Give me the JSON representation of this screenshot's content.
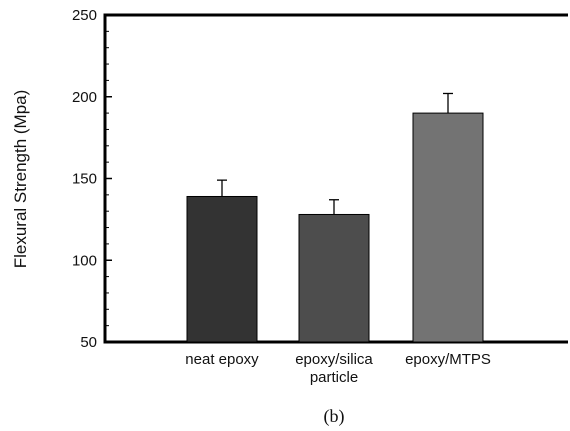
{
  "chart_data": {
    "type": "bar",
    "categories": [
      [
        "neat epoxy"
      ],
      [
        "epoxy/silica",
        "particle"
      ],
      [
        "epoxy/MTPS"
      ]
    ],
    "values": [
      139,
      128,
      190
    ],
    "errors": [
      10,
      9,
      12
    ],
    "ylabel": "Flexural Strength (Mpa)",
    "xlabel": "",
    "ylim": [
      50,
      250
    ],
    "yticks": [
      50,
      100,
      150,
      200,
      250
    ],
    "grid": false,
    "bar_colors": [
      "#333333",
      "#4d4d4d",
      "#737373"
    ]
  },
  "caption": "(b)"
}
